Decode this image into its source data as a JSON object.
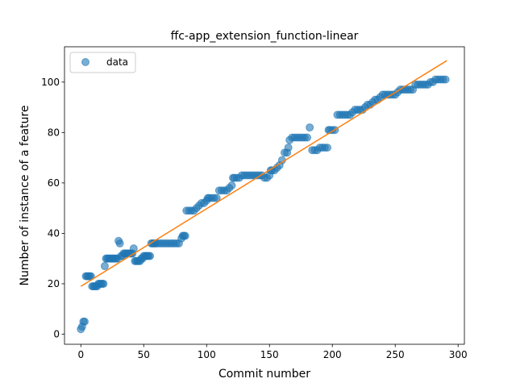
{
  "chart_data": {
    "type": "scatter",
    "title": "ffc-app_extension_function-linear",
    "xlabel": "Commit number",
    "ylabel": "Number of instance of a feature",
    "xlim": [
      -13,
      305
    ],
    "ylim": [
      -4,
      114
    ],
    "xticks": [
      0,
      50,
      100,
      150,
      200,
      250,
      300
    ],
    "yticks": [
      0,
      20,
      40,
      60,
      80,
      100
    ],
    "grid": false,
    "legend": {
      "position": "top-left",
      "entries": [
        "data"
      ]
    },
    "colors": {
      "data": "#1f77b4",
      "fit": "#ff7f0e"
    },
    "series": [
      {
        "name": "data",
        "kind": "scatter",
        "points": [
          [
            0,
            2
          ],
          [
            1,
            3
          ],
          [
            2,
            5
          ],
          [
            3,
            5
          ],
          [
            4,
            23
          ],
          [
            5,
            23
          ],
          [
            6,
            23
          ],
          [
            7,
            23
          ],
          [
            8,
            23
          ],
          [
            9,
            19
          ],
          [
            10,
            19
          ],
          [
            11,
            19
          ],
          [
            12,
            19
          ],
          [
            13,
            19
          ],
          [
            14,
            20
          ],
          [
            15,
            20
          ],
          [
            16,
            20
          ],
          [
            17,
            20
          ],
          [
            18,
            20
          ],
          [
            19,
            27
          ],
          [
            20,
            30
          ],
          [
            21,
            30
          ],
          [
            22,
            30
          ],
          [
            23,
            30
          ],
          [
            24,
            30
          ],
          [
            25,
            30
          ],
          [
            26,
            30
          ],
          [
            27,
            30
          ],
          [
            28,
            30
          ],
          [
            29,
            30
          ],
          [
            30,
            37
          ],
          [
            31,
            36
          ],
          [
            32,
            31
          ],
          [
            33,
            31
          ],
          [
            34,
            32
          ],
          [
            35,
            32
          ],
          [
            36,
            32
          ],
          [
            37,
            32
          ],
          [
            38,
            32
          ],
          [
            39,
            32
          ],
          [
            40,
            32
          ],
          [
            41,
            32
          ],
          [
            42,
            34
          ],
          [
            43,
            29
          ],
          [
            44,
            29
          ],
          [
            45,
            29
          ],
          [
            46,
            29
          ],
          [
            47,
            29
          ],
          [
            48,
            30
          ],
          [
            49,
            30
          ],
          [
            50,
            31
          ],
          [
            51,
            31
          ],
          [
            52,
            31
          ],
          [
            53,
            31
          ],
          [
            54,
            31
          ],
          [
            55,
            31
          ],
          [
            56,
            36
          ],
          [
            57,
            36
          ],
          [
            58,
            36
          ],
          [
            59,
            36
          ],
          [
            60,
            36
          ],
          [
            62,
            36
          ],
          [
            64,
            36
          ],
          [
            66,
            36
          ],
          [
            68,
            36
          ],
          [
            70,
            36
          ],
          [
            72,
            36
          ],
          [
            74,
            36
          ],
          [
            76,
            36
          ],
          [
            78,
            36
          ],
          [
            80,
            38
          ],
          [
            81,
            39
          ],
          [
            82,
            39
          ],
          [
            83,
            39
          ],
          [
            84,
            49
          ],
          [
            86,
            49
          ],
          [
            88,
            49
          ],
          [
            90,
            49
          ],
          [
            92,
            50
          ],
          [
            94,
            51
          ],
          [
            96,
            52
          ],
          [
            98,
            52
          ],
          [
            100,
            53
          ],
          [
            101,
            54
          ],
          [
            102,
            54
          ],
          [
            104,
            54
          ],
          [
            106,
            54
          ],
          [
            108,
            54
          ],
          [
            110,
            57
          ],
          [
            112,
            57
          ],
          [
            114,
            57
          ],
          [
            116,
            57
          ],
          [
            118,
            58
          ],
          [
            120,
            59
          ],
          [
            121,
            62
          ],
          [
            122,
            62
          ],
          [
            124,
            62
          ],
          [
            126,
            62
          ],
          [
            128,
            63
          ],
          [
            130,
            63
          ],
          [
            132,
            63
          ],
          [
            134,
            63
          ],
          [
            136,
            63
          ],
          [
            138,
            63
          ],
          [
            140,
            63
          ],
          [
            142,
            63
          ],
          [
            144,
            63
          ],
          [
            146,
            62
          ],
          [
            148,
            62
          ],
          [
            150,
            63
          ],
          [
            151,
            65
          ],
          [
            152,
            65
          ],
          [
            154,
            65
          ],
          [
            156,
            66
          ],
          [
            158,
            67
          ],
          [
            160,
            69
          ],
          [
            162,
            72
          ],
          [
            164,
            72
          ],
          [
            165,
            74
          ],
          [
            166,
            77
          ],
          [
            168,
            78
          ],
          [
            170,
            78
          ],
          [
            172,
            78
          ],
          [
            174,
            78
          ],
          [
            176,
            78
          ],
          [
            178,
            78
          ],
          [
            180,
            78
          ],
          [
            182,
            82
          ],
          [
            184,
            73
          ],
          [
            186,
            73
          ],
          [
            188,
            73
          ],
          [
            190,
            74
          ],
          [
            192,
            74
          ],
          [
            194,
            74
          ],
          [
            196,
            74
          ],
          [
            197,
            81
          ],
          [
            198,
            81
          ],
          [
            200,
            81
          ],
          [
            202,
            81
          ],
          [
            204,
            87
          ],
          [
            206,
            87
          ],
          [
            208,
            87
          ],
          [
            210,
            87
          ],
          [
            212,
            87
          ],
          [
            214,
            87
          ],
          [
            216,
            88
          ],
          [
            218,
            89
          ],
          [
            220,
            89
          ],
          [
            222,
            89
          ],
          [
            224,
            89
          ],
          [
            226,
            90
          ],
          [
            228,
            91
          ],
          [
            230,
            91
          ],
          [
            232,
            92
          ],
          [
            234,
            93
          ],
          [
            236,
            93
          ],
          [
            238,
            94
          ],
          [
            240,
            95
          ],
          [
            242,
            95
          ],
          [
            244,
            95
          ],
          [
            246,
            95
          ],
          [
            248,
            95
          ],
          [
            250,
            95
          ],
          [
            252,
            96
          ],
          [
            254,
            97
          ],
          [
            256,
            97
          ],
          [
            258,
            97
          ],
          [
            260,
            97
          ],
          [
            262,
            97
          ],
          [
            264,
            97
          ],
          [
            266,
            99
          ],
          [
            268,
            99
          ],
          [
            270,
            99
          ],
          [
            272,
            99
          ],
          [
            274,
            99
          ],
          [
            276,
            99
          ],
          [
            278,
            100
          ],
          [
            280,
            100
          ],
          [
            282,
            101
          ],
          [
            284,
            101
          ],
          [
            286,
            101
          ],
          [
            288,
            101
          ],
          [
            290,
            101
          ]
        ]
      },
      {
        "kind": "line",
        "points": [
          [
            0,
            19
          ],
          [
            291,
            108.5
          ]
        ]
      }
    ]
  }
}
